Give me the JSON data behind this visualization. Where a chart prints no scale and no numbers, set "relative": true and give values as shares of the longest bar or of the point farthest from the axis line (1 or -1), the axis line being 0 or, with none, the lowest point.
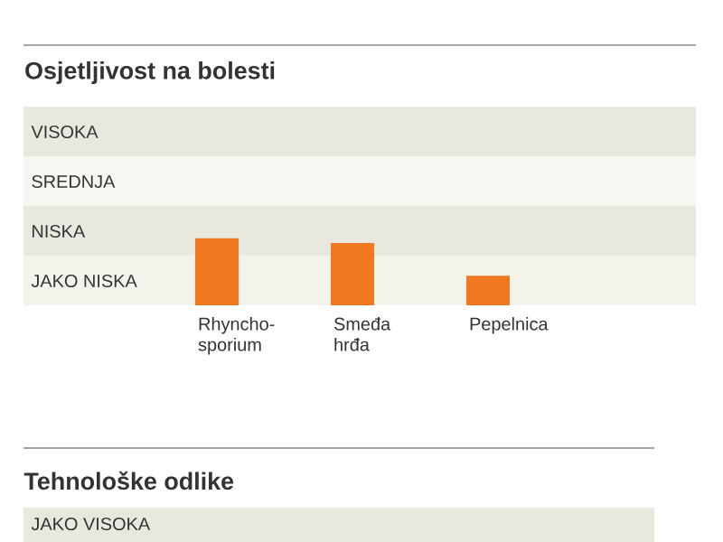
{
  "chart_data": [
    {
      "type": "bar",
      "title": "Osjetljivost na bolesti",
      "categories": [
        "Rhyncho-sporium",
        "Smeđa hrđa",
        "Pepelnica"
      ],
      "values": [
        1,
        0.93,
        0.44
      ],
      "color": "#f07820",
      "relative": true,
      "bands": [
        {
          "axis": "y",
          "from": 2.22,
          "to": 2.96,
          "color": "#e9e8de",
          "label": "VISOKA"
        },
        {
          "axis": "y",
          "from": 1.48,
          "to": 2.22,
          "color": "#f7f7f2",
          "label": "SREDNJA"
        },
        {
          "axis": "y",
          "from": 0.74,
          "to": 1.48,
          "color": "#e9e8de",
          "label": "NISKA"
        },
        {
          "axis": "y",
          "from": 0,
          "to": 0.74,
          "color": "#f3f2eb",
          "label": "JAKO NISKA"
        }
      ]
    },
    {
      "type": "other",
      "title": "Tehnološke odlike",
      "annotations": [
        "JAKO VISOKA"
      ]
    }
  ]
}
